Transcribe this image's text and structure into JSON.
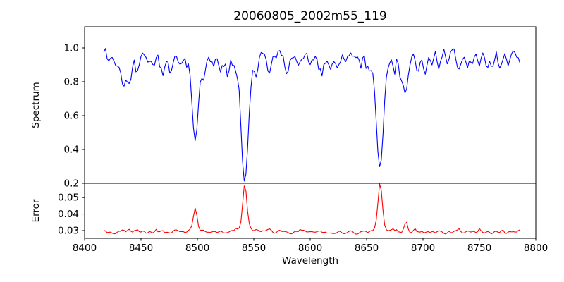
{
  "chart_data": {
    "type": "line",
    "title": "20060805_2002m55_119",
    "xlabel": "Wavelength",
    "grid": false,
    "legend": null,
    "xlim": [
      8400,
      8800
    ],
    "x_ticks": [
      8400,
      8450,
      8500,
      8550,
      8600,
      8650,
      8700,
      8750,
      8800
    ],
    "x_tick_labels": [
      "8400",
      "8450",
      "8500",
      "8550",
      "8600",
      "8650",
      "8700",
      "8750",
      "8800"
    ],
    "data_x_start": 8417,
    "data_x_end": 8786,
    "data_x_step": 1.5,
    "noise_seed": 7,
    "subplots": [
      {
        "name": "spectrum",
        "ylabel": "Spectrum",
        "ylim": [
          0.2,
          1.125
        ],
        "y_ticks": [
          0.2,
          0.4,
          0.6,
          0.8,
          1.0
        ],
        "y_tick_labels": [
          "0.2",
          "0.4",
          "0.6",
          "0.8",
          "1.0"
        ],
        "line_color": "#0000ff",
        "continuum": 0.955,
        "noise_amplitude": 0.055,
        "deep_dip_probability": 0.1,
        "deep_dip_max": 0.05,
        "up_spike_probability": 0.05,
        "up_spike_max": 0.035,
        "absorption_lines": [
          {
            "center": 8498.0,
            "depth": 0.45,
            "sigma": 2.8,
            "wing_depth": 0.04,
            "wing_sigma": 7
          },
          {
            "center": 8542.0,
            "depth": 0.66,
            "sigma": 3.2,
            "wing_depth": 0.06,
            "wing_sigma": 9
          },
          {
            "center": 8662.0,
            "depth": 0.62,
            "sigma": 3.0,
            "wing_depth": 0.05,
            "wing_sigma": 8
          },
          {
            "center": 8684.5,
            "depth": 0.26,
            "sigma": 2.2,
            "wing_depth": 0.0,
            "wing_sigma": 1
          }
        ],
        "minor_dips": [
          [
            8427.5,
            0.09,
            1.8
          ],
          [
            8434,
            0.17,
            2.0
          ],
          [
            8440,
            0.15,
            1.8
          ],
          [
            8447,
            0.08,
            1.5
          ],
          [
            8455,
            0.06,
            1.4
          ],
          [
            8462,
            0.07,
            1.4
          ],
          [
            8468,
            0.13,
            2.0
          ],
          [
            8477,
            0.1,
            1.6
          ],
          [
            8484,
            0.06,
            1.4
          ],
          [
            8505.5,
            0.1,
            1.6
          ],
          [
            8514,
            0.07,
            1.5
          ],
          [
            8520.5,
            0.09,
            1.5
          ],
          [
            8527,
            0.07,
            1.4
          ],
          [
            8552,
            0.07,
            1.5
          ],
          [
            8563,
            0.08,
            1.6
          ],
          [
            8580,
            0.1,
            1.7
          ],
          [
            8589,
            0.07,
            1.4
          ],
          [
            8602,
            0.06,
            1.4
          ],
          [
            8609,
            0.1,
            1.7
          ],
          [
            8617,
            0.06,
            1.4
          ],
          [
            8625,
            0.08,
            1.5
          ],
          [
            8631,
            0.06,
            1.4
          ],
          [
            8645,
            0.09,
            1.6
          ],
          [
            8652,
            0.06,
            1.4
          ],
          [
            8674,
            0.07,
            1.4
          ],
          [
            8680,
            0.08,
            1.4
          ],
          [
            8696,
            0.12,
            1.7
          ],
          [
            8702,
            0.09,
            1.5
          ],
          [
            8708,
            0.08,
            1.5
          ],
          [
            8714,
            0.06,
            1.4
          ],
          [
            8722,
            0.07,
            1.4
          ],
          [
            8731,
            0.09,
            1.5
          ],
          [
            8738,
            0.06,
            1.3
          ],
          [
            8744,
            0.07,
            1.4
          ],
          [
            8750,
            0.08,
            1.5
          ],
          [
            8757,
            0.06,
            1.3
          ],
          [
            8762,
            0.07,
            1.4
          ],
          [
            8768,
            0.07,
            1.4
          ],
          [
            8775,
            0.06,
            1.3
          ]
        ]
      },
      {
        "name": "error",
        "ylabel": "Error",
        "ylim": [
          0.0253,
          0.0586
        ],
        "y_ticks": [
          0.03,
          0.04,
          0.05
        ],
        "y_tick_labels": [
          "0.03",
          "0.04",
          "0.05"
        ],
        "line_color": "#ff0000",
        "baseline": 0.0292,
        "noise_amplitude": 0.0016,
        "up_spike_probability": 0.12,
        "up_spike_max": 0.0012,
        "peaks": [
          [
            8498.0,
            0.0118,
            1.6
          ],
          [
            8498.0,
            0.002,
            5.0
          ],
          [
            8542.0,
            0.025,
            1.8
          ],
          [
            8542.0,
            0.003,
            6.0
          ],
          [
            8662.0,
            0.0255,
            1.8
          ],
          [
            8662.0,
            0.003,
            6.0
          ],
          [
            8684.5,
            0.005,
            1.5
          ],
          [
            8434,
            0.0022,
            1.5
          ],
          [
            8440,
            0.0018,
            1.3
          ],
          [
            8468,
            0.0015,
            1.3
          ],
          [
            8563,
            0.0013,
            1.3
          ],
          [
            8580,
            0.0012,
            1.2
          ],
          [
            8609,
            0.001,
            1.2
          ]
        ]
      }
    ]
  }
}
